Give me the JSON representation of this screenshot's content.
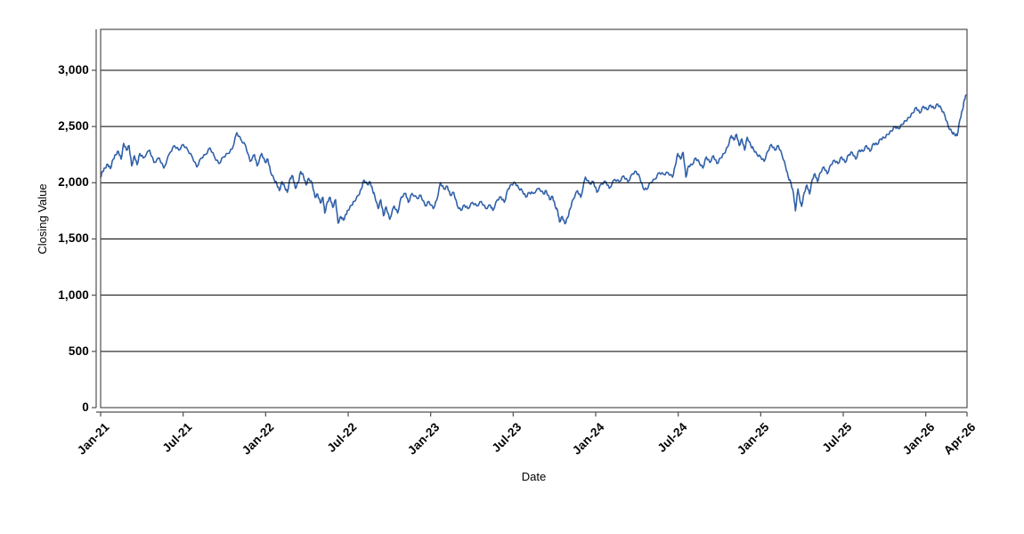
{
  "window": {
    "background_color": "#ffffff"
  },
  "chart_data": {
    "type": "line",
    "title": "",
    "xlabel": "Date",
    "ylabel": "Closing Value",
    "legend": "none",
    "grid": "horizontal",
    "x_axis": {
      "unit": "months since Jan-2021",
      "range_months": [
        0,
        63
      ],
      "ticks": [
        {
          "label": "Jan-21",
          "m": 0
        },
        {
          "label": "Jul-21",
          "m": 6
        },
        {
          "label": "Jan-22",
          "m": 12
        },
        {
          "label": "Jul-22",
          "m": 18
        },
        {
          "label": "Jan-23",
          "m": 24
        },
        {
          "label": "Jul-23",
          "m": 30
        },
        {
          "label": "Jan-24",
          "m": 36
        },
        {
          "label": "Jul-24",
          "m": 42
        },
        {
          "label": "Jan-25",
          "m": 48
        },
        {
          "label": "Jul-25",
          "m": 54
        },
        {
          "label": "Jan-26",
          "m": 60
        },
        {
          "label": "Apr-26",
          "m": 63
        }
      ]
    },
    "y_axis": {
      "range": [
        0,
        3364
      ],
      "ticks": [
        {
          "label": "0",
          "v": 0
        },
        {
          "label": "500",
          "v": 500
        },
        {
          "label": "1,000",
          "v": 1000
        },
        {
          "label": "1,500",
          "v": 1500
        },
        {
          "label": "2,000",
          "v": 2000
        },
        {
          "label": "2,500",
          "v": 2500
        },
        {
          "label": "3,000",
          "v": 3000
        }
      ]
    },
    "series": [
      {
        "name": "Closing Value",
        "color": "#3060a8",
        "points_month_value": [
          [
            0.0,
            2050
          ],
          [
            0.13,
            2100
          ],
          [
            0.32,
            2130
          ],
          [
            0.52,
            2165
          ],
          [
            0.71,
            2125
          ],
          [
            0.91,
            2210
          ],
          [
            1.1,
            2250
          ],
          [
            1.29,
            2280
          ],
          [
            1.49,
            2210
          ],
          [
            1.68,
            2350
          ],
          [
            1.88,
            2290
          ],
          [
            2.07,
            2330
          ],
          [
            2.26,
            2150
          ],
          [
            2.46,
            2240
          ],
          [
            2.65,
            2160
          ],
          [
            2.85,
            2260
          ],
          [
            3.1,
            2220
          ],
          [
            3.56,
            2290
          ],
          [
            3.88,
            2180
          ],
          [
            4.27,
            2220
          ],
          [
            4.59,
            2130
          ],
          [
            5.05,
            2270
          ],
          [
            5.37,
            2330
          ],
          [
            5.69,
            2290
          ],
          [
            6.01,
            2340
          ],
          [
            6.34,
            2290
          ],
          [
            6.66,
            2230
          ],
          [
            6.99,
            2140
          ],
          [
            7.31,
            2220
          ],
          [
            7.63,
            2250
          ],
          [
            7.96,
            2310
          ],
          [
            8.28,
            2230
          ],
          [
            8.6,
            2170
          ],
          [
            8.93,
            2230
          ],
          [
            9.25,
            2260
          ],
          [
            9.57,
            2300
          ],
          [
            9.9,
            2445
          ],
          [
            10.22,
            2380
          ],
          [
            10.54,
            2330
          ],
          [
            10.87,
            2190
          ],
          [
            11.19,
            2250
          ],
          [
            11.38,
            2150
          ],
          [
            11.71,
            2260
          ],
          [
            11.97,
            2180
          ],
          [
            12.16,
            2210
          ],
          [
            12.35,
            2100
          ],
          [
            12.61,
            2030
          ],
          [
            12.81,
            1990
          ],
          [
            13.0,
            1930
          ],
          [
            13.19,
            2010
          ],
          [
            13.39,
            1960
          ],
          [
            13.58,
            1915
          ],
          [
            13.78,
            2040
          ],
          [
            13.97,
            2060
          ],
          [
            14.16,
            1950
          ],
          [
            14.36,
            2000
          ],
          [
            14.55,
            2100
          ],
          [
            14.75,
            2060
          ],
          [
            14.94,
            1980
          ],
          [
            15.13,
            2040
          ],
          [
            15.39,
            1990
          ],
          [
            15.59,
            1870
          ],
          [
            15.78,
            1900
          ],
          [
            15.98,
            1820
          ],
          [
            16.17,
            1870
          ],
          [
            16.3,
            1730
          ],
          [
            16.49,
            1830
          ],
          [
            16.69,
            1870
          ],
          [
            16.88,
            1780
          ],
          [
            17.08,
            1850
          ],
          [
            17.27,
            1640
          ],
          [
            17.46,
            1700
          ],
          [
            17.66,
            1667
          ],
          [
            17.85,
            1720
          ],
          [
            17.98,
            1754
          ],
          [
            18.24,
            1800
          ],
          [
            18.43,
            1833
          ],
          [
            18.76,
            1889
          ],
          [
            18.95,
            1944
          ],
          [
            19.15,
            2024
          ],
          [
            19.4,
            1984
          ],
          [
            19.6,
            2008
          ],
          [
            19.79,
            1929
          ],
          [
            19.92,
            1889
          ],
          [
            20.18,
            1770
          ],
          [
            20.37,
            1849
          ],
          [
            20.57,
            1706
          ],
          [
            20.76,
            1786
          ],
          [
            21.02,
            1675
          ],
          [
            21.34,
            1794
          ],
          [
            21.6,
            1730
          ],
          [
            21.86,
            1873
          ],
          [
            22.18,
            1905
          ],
          [
            22.38,
            1825
          ],
          [
            22.64,
            1905
          ],
          [
            23.02,
            1860
          ],
          [
            23.28,
            1889
          ],
          [
            23.61,
            1794
          ],
          [
            23.87,
            1833
          ],
          [
            24.19,
            1770
          ],
          [
            24.45,
            1849
          ],
          [
            24.71,
            2000
          ],
          [
            24.97,
            1944
          ],
          [
            25.22,
            1968
          ],
          [
            25.42,
            1889
          ],
          [
            25.68,
            1913
          ],
          [
            25.94,
            1794
          ],
          [
            26.2,
            1754
          ],
          [
            26.45,
            1802
          ],
          [
            26.71,
            1770
          ],
          [
            27.04,
            1825
          ],
          [
            27.36,
            1794
          ],
          [
            27.68,
            1833
          ],
          [
            28.01,
            1770
          ],
          [
            28.33,
            1802
          ],
          [
            28.52,
            1754
          ],
          [
            28.85,
            1849
          ],
          [
            29.11,
            1873
          ],
          [
            29.36,
            1825
          ],
          [
            29.62,
            1944
          ],
          [
            29.88,
            1984
          ],
          [
            30.14,
            2000
          ],
          [
            30.4,
            1952
          ],
          [
            30.66,
            1929
          ],
          [
            30.92,
            1873
          ],
          [
            31.17,
            1913
          ],
          [
            31.43,
            1905
          ],
          [
            31.89,
            1950
          ],
          [
            32.21,
            1900
          ],
          [
            32.4,
            1930
          ],
          [
            32.66,
            1850
          ],
          [
            32.86,
            1880
          ],
          [
            33.05,
            1794
          ],
          [
            33.24,
            1746
          ],
          [
            33.37,
            1651
          ],
          [
            33.57,
            1700
          ],
          [
            33.76,
            1635
          ],
          [
            33.96,
            1690
          ],
          [
            34.15,
            1770
          ],
          [
            34.34,
            1850
          ],
          [
            34.67,
            1930
          ],
          [
            34.92,
            1870
          ],
          [
            35.25,
            2050
          ],
          [
            35.57,
            1990
          ],
          [
            35.83,
            2010
          ],
          [
            36.09,
            1915
          ],
          [
            36.41,
            1990
          ],
          [
            36.74,
            2010
          ],
          [
            36.99,
            1950
          ],
          [
            37.38,
            2030
          ],
          [
            37.71,
            2010
          ],
          [
            38.03,
            2060
          ],
          [
            38.35,
            2010
          ],
          [
            38.68,
            2080
          ],
          [
            38.94,
            2100
          ],
          [
            39.2,
            2050
          ],
          [
            39.45,
            1950
          ],
          [
            39.71,
            1940
          ],
          [
            39.97,
            2000
          ],
          [
            40.29,
            2030
          ],
          [
            40.62,
            2090
          ],
          [
            40.94,
            2075
          ],
          [
            41.26,
            2090
          ],
          [
            41.59,
            2050
          ],
          [
            41.78,
            2150
          ],
          [
            41.97,
            2260
          ],
          [
            42.17,
            2210
          ],
          [
            42.36,
            2270
          ],
          [
            42.56,
            2050
          ],
          [
            42.75,
            2150
          ],
          [
            43.01,
            2160
          ],
          [
            43.27,
            2220
          ],
          [
            43.53,
            2180
          ],
          [
            43.79,
            2130
          ],
          [
            44.04,
            2230
          ],
          [
            44.3,
            2180
          ],
          [
            44.56,
            2240
          ],
          [
            44.82,
            2170
          ],
          [
            45.08,
            2220
          ],
          [
            45.34,
            2260
          ],
          [
            45.6,
            2320
          ],
          [
            45.86,
            2420
          ],
          [
            46.05,
            2380
          ],
          [
            46.24,
            2430
          ],
          [
            46.44,
            2330
          ],
          [
            46.63,
            2390
          ],
          [
            46.83,
            2290
          ],
          [
            47.02,
            2405
          ],
          [
            47.28,
            2330
          ],
          [
            47.47,
            2300
          ],
          [
            47.73,
            2250
          ],
          [
            47.99,
            2230
          ],
          [
            48.25,
            2190
          ],
          [
            48.51,
            2280
          ],
          [
            48.77,
            2340
          ],
          [
            49.03,
            2290
          ],
          [
            49.28,
            2330
          ],
          [
            49.54,
            2250
          ],
          [
            49.8,
            2150
          ],
          [
            50.0,
            2050
          ],
          [
            50.19,
            2000
          ],
          [
            50.39,
            1900
          ],
          [
            50.52,
            1750
          ],
          [
            50.71,
            1945
          ],
          [
            50.84,
            1850
          ],
          [
            50.97,
            1790
          ],
          [
            51.16,
            1910
          ],
          [
            51.36,
            1980
          ],
          [
            51.55,
            1900
          ],
          [
            51.75,
            2030
          ],
          [
            51.94,
            2080
          ],
          [
            52.13,
            2010
          ],
          [
            52.33,
            2090
          ],
          [
            52.59,
            2140
          ],
          [
            52.84,
            2080
          ],
          [
            53.1,
            2160
          ],
          [
            53.36,
            2200
          ],
          [
            53.62,
            2170
          ],
          [
            53.88,
            2230
          ],
          [
            54.14,
            2180
          ],
          [
            54.4,
            2250
          ],
          [
            54.65,
            2270
          ],
          [
            54.91,
            2210
          ],
          [
            55.17,
            2290
          ],
          [
            55.43,
            2280
          ],
          [
            55.69,
            2330
          ],
          [
            55.95,
            2280
          ],
          [
            56.21,
            2350
          ],
          [
            56.46,
            2340
          ],
          [
            56.72,
            2390
          ],
          [
            56.98,
            2400
          ],
          [
            57.24,
            2430
          ],
          [
            57.5,
            2460
          ],
          [
            57.76,
            2500
          ],
          [
            58.02,
            2480
          ],
          [
            58.28,
            2520
          ],
          [
            58.54,
            2550
          ],
          [
            58.79,
            2580
          ],
          [
            59.05,
            2620
          ],
          [
            59.31,
            2670
          ],
          [
            59.57,
            2620
          ],
          [
            59.83,
            2680
          ],
          [
            60.09,
            2650
          ],
          [
            60.35,
            2690
          ],
          [
            60.6,
            2660
          ],
          [
            60.86,
            2700
          ],
          [
            61.12,
            2660
          ],
          [
            61.38,
            2600
          ],
          [
            61.64,
            2500
          ],
          [
            61.9,
            2450
          ],
          [
            62.09,
            2430
          ],
          [
            62.29,
            2420
          ],
          [
            62.48,
            2560
          ],
          [
            62.68,
            2650
          ],
          [
            62.81,
            2740
          ],
          [
            62.94,
            2780
          ]
        ]
      }
    ],
    "render": {
      "line_width": 1.6,
      "noise_amplitude": 10,
      "gridline_color": "#000000",
      "frame_color": "#4f4f4f",
      "tick_color": "#4f4f4f",
      "text_color": "#000000"
    }
  }
}
